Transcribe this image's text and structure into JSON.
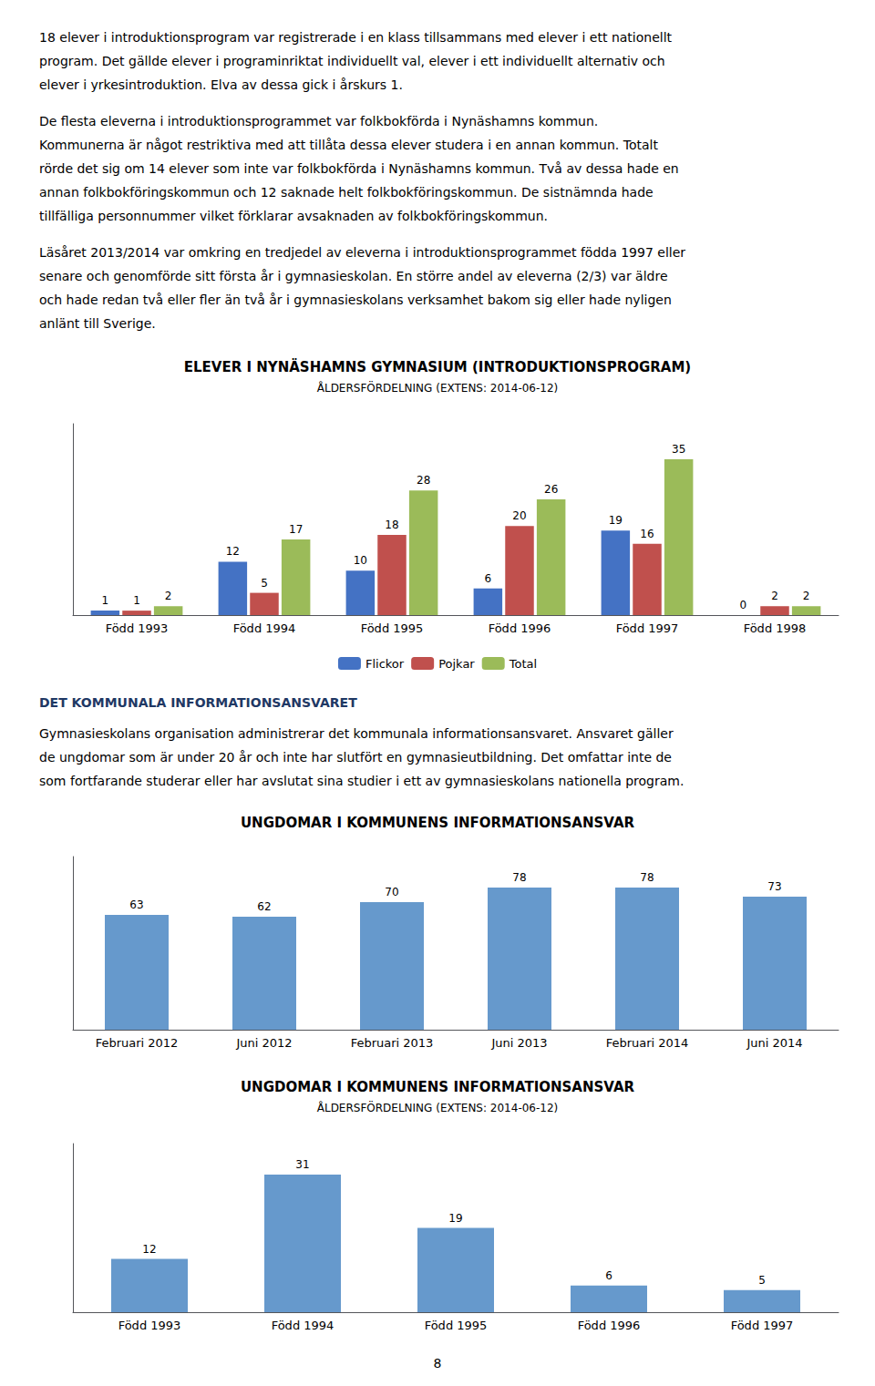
{
  "page_text": [
    [
      "18 elever i introduktionsprogram var registrerade i en klass tillsammans med elever i ett nationellt",
      "program. Det gällde elever i programinriktat individuellt val, elever i ett individuellt alternativ och",
      "elever i yrkesintroduktion. Elva av dessa gick i årskurs 1."
    ],
    [
      "De flesta eleverna i introduktionsprogrammet var folkbokförda i Nynäshamns kommun.",
      "Kommunerna är något restriktiva med att tillåta dessa elever studera i en annan kommun. Totalt",
      "rörde det sig om 14 elever som inte var folkbokförda i Nynäshamns kommun. Två av dessa hade en",
      "annan folkbokföringskommun och 12 saknade helt folkbokföringskommun. De sistnämnda hade",
      "tillfälliga personnummer vilket förklarar avsaknaden av folkbokföringskommun."
    ],
    [
      "Läsåret 2013/2014 var omkring en tredjedel av eleverna i introduktionsprogrammet födda 1997 eller",
      "senare och genomförde sitt första år i gymnasieskolan. En större andel av eleverna (2/3) var äldre",
      "och hade redan två eller fler än två år i gymnasieskolans verksamhet bakom sig eller hade nyligen",
      "anlänt till Sverige."
    ]
  ],
  "section_header": "DET KOMMUNALA INFORMATIONSANSVARET",
  "header_color": "#1F3864",
  "section_text": [
    "Gymnasieskolans organisation administrerar det kommunala informationsansvaret. Ansvaret gäller",
    "de ungdomar som är under 20 år och inte har slutfört en gymnasieutbildning. Det omfattar inte de",
    "som fortfarande studerar eller har avslutat sina studier i ett av gymnasieskolans nationella program."
  ],
  "page_number": "8",
  "chart_data": [
    {
      "type": "bar",
      "title": "ELEVER I NYNÄSHAMNS GYMNASIUM (INTRODUKTIONSPROGRAM)",
      "subtitle": "ÅLDERSFÖRDELNING (EXTENS: 2014-06-12)",
      "categories": [
        "Född 1993",
        "Född 1994",
        "Född 1995",
        "Född 1996",
        "Född 1997",
        "Född 1998"
      ],
      "series": [
        {
          "name": "Flickor",
          "color": "#4472C4",
          "values": [
            1,
            12,
            10,
            6,
            19,
            0
          ]
        },
        {
          "name": "Pojkar",
          "color": "#C0504D",
          "values": [
            1,
            5,
            18,
            20,
            16,
            2
          ]
        },
        {
          "name": "Total",
          "color": "#9BBB59",
          "values": [
            2,
            17,
            28,
            26,
            35,
            2
          ]
        }
      ],
      "ylim": [
        0,
        43
      ],
      "grid": false,
      "legend": "bottom",
      "data_labels": true,
      "tick_labels": "x"
    },
    {
      "type": "bar",
      "title": "UNGDOMAR I KOMMUNENS INFORMATIONSANSVAR",
      "categories": [
        "Februari 2012",
        "Juni 2012",
        "Februari 2013",
        "Juni 2013",
        "Februari 2014",
        "Juni 2014"
      ],
      "values": [
        63,
        62,
        70,
        78,
        78,
        73
      ],
      "color": "#6699CC",
      "ylim": [
        0,
        95
      ],
      "grid": false,
      "data_labels": true,
      "tick_labels": "x"
    },
    {
      "type": "bar",
      "title": "UNGDOMAR I KOMMUNENS INFORMATIONSANSVAR",
      "subtitle": "ÅLDERSFÖRDELNING (EXTENS: 2014-06-12)",
      "categories": [
        "Född 1993",
        "Född 1994",
        "Född 1995",
        "Född 1996",
        "Född 1997"
      ],
      "values": [
        12,
        31,
        19,
        6,
        5
      ],
      "color": "#6699CC",
      "ylim": [
        0,
        38
      ],
      "grid": false,
      "data_labels": true,
      "tick_labels": "x"
    }
  ]
}
